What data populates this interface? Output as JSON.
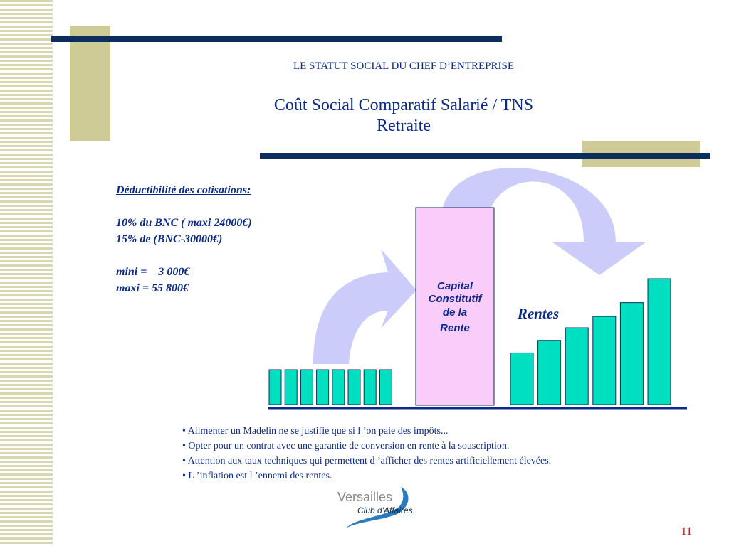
{
  "header": {
    "section": "LE STATUT SOCIAL DU CHEF D’ENTREPRISE",
    "title_line1": "Coût Social Comparatif Salarié / TNS",
    "title_line2": "Retraite"
  },
  "deductibility": {
    "heading": "Déductibilité des cotisations:",
    "line1": "10% du BNC ( maxi 24000€)",
    "line2": "15% de (BNC-30000€)",
    "line3": "mini =    3 000€",
    "line4": "maxi = 55 800€"
  },
  "diagram": {
    "capital_line1": "Capital",
    "capital_line2": "Constitutif",
    "capital_line3": "de la",
    "capital_line4": "Rente",
    "rentes_label": "Rentes",
    "colors": {
      "bar": "#00e0c0",
      "bar_stroke": "#0b2e5e",
      "capital_fill": "#f9ccf9",
      "arrow": "#ccccfa",
      "axis": "#0b2a8a"
    },
    "contribution_bars": 8,
    "rente_levels": [
      0.41,
      0.51,
      0.61,
      0.7,
      0.81,
      1.0
    ]
  },
  "bullets": [
    "• Alimenter un Madelin ne se justifie que si l ’on paie des impôts...",
    "• Opter pour un contrat avec une garantie de conversion en rente à la souscription.",
    "• Attention aux taux techniques qui permettent d ’afficher des rentes artificiellement  élevées.",
    "• L ’inflation est l ’ennemi des rentes."
  ],
  "logo": {
    "line1": "Versailles",
    "line2": "Club d'Affaires"
  },
  "page_number": "11"
}
